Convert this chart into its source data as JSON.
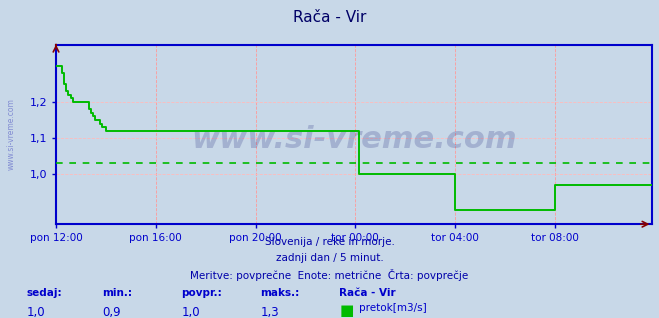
{
  "title": "Rača - Vir",
  "title_color": "#000066",
  "title_fontsize": 11,
  "bg_color": "#c8d8e8",
  "plot_bg_color": "#c8d8e8",
  "line_color": "#00bb00",
  "line_width": 1.4,
  "avg_line_color": "#00bb00",
  "avg_line_value": 1.03,
  "axis_color": "#0000cc",
  "grid_color_v": "#ff9999",
  "grid_color_h": "#ffbbbb",
  "ylim": [
    0.86,
    1.36
  ],
  "yticks": [
    1.0,
    1.1,
    1.2
  ],
  "xtick_labels": [
    "pon 12:00",
    "pon 16:00",
    "pon 20:00",
    "tor 00:00",
    "tor 04:00",
    "tor 08:00"
  ],
  "watermark_text": "www.si-vreme.com",
  "watermark_color": "#000066",
  "watermark_alpha": 0.18,
  "watermark_fontsize": 22,
  "footer_line1": "Slovenija / reke in morje.",
  "footer_line2": "zadnji dan / 5 minut.",
  "footer_line3": "Meritve: povprečne  Enote: metrične  Črta: povprečje",
  "footer_color": "#0000aa",
  "footer_fontsize": 7.5,
  "bottom_labels": {
    "sedaj_label": "sedaj:",
    "min_label": "min.:",
    "povpr_label": "povpr.:",
    "maks_label": "maks.:",
    "station_label": "Rača - Vir",
    "sedaj_val": "1,0",
    "min_val": "0,9",
    "povpr_val": "1,0",
    "maks_val": "1,3",
    "legend_label": "pretok[m3/s]"
  },
  "ylabel_text": "www.si-vreme.com",
  "ylabel_color": "#0000aa",
  "ylabel_alpha": 0.35,
  "n_points": 288,
  "xtick_pos": [
    0,
    48,
    96,
    144,
    192,
    240
  ],
  "data_x": [
    0,
    1,
    2,
    3,
    4,
    5,
    6,
    7,
    8,
    9,
    10,
    11,
    12,
    13,
    14,
    15,
    16,
    17,
    18,
    19,
    20,
    21,
    22,
    23,
    24,
    25,
    26,
    27,
    28,
    29,
    30,
    31,
    32,
    33,
    34,
    35,
    36,
    37,
    38,
    39,
    40,
    41,
    42,
    43,
    44,
    45,
    46,
    47,
    48,
    49,
    50,
    51,
    52,
    53,
    54,
    55,
    56,
    57,
    58,
    59,
    60,
    61,
    62,
    63,
    64,
    65,
    66,
    67,
    68,
    69,
    70,
    71,
    72,
    73,
    74,
    75,
    76,
    77,
    78,
    79,
    80,
    81,
    82,
    83,
    84,
    85,
    86,
    87,
    88,
    89,
    90,
    91,
    92,
    93,
    94,
    95,
    96,
    97,
    98,
    99,
    100,
    101,
    102,
    103,
    104,
    105,
    106,
    107,
    108,
    109,
    110,
    111,
    112,
    113,
    114,
    115,
    116,
    117,
    118,
    119,
    120,
    121,
    122,
    123,
    124,
    125,
    126,
    127,
    128,
    129,
    130,
    131,
    132,
    133,
    134,
    135,
    136,
    137,
    138,
    139,
    140,
    141,
    142,
    143,
    144,
    145,
    146,
    147,
    148,
    149,
    150,
    151,
    152,
    153,
    154,
    155,
    156,
    157,
    158,
    159,
    160,
    161,
    162,
    163,
    164,
    165,
    166,
    167,
    168,
    169,
    170,
    171,
    172,
    173,
    174,
    175,
    176,
    177,
    178,
    179,
    180,
    181,
    182,
    183,
    184,
    185,
    186,
    187,
    188,
    189,
    190,
    191,
    192,
    193,
    194,
    195,
    196,
    197,
    198,
    199,
    200,
    201,
    202,
    203,
    204,
    205,
    206,
    207,
    208,
    209,
    210,
    211,
    212,
    213,
    214,
    215,
    216,
    217,
    218,
    219,
    220,
    221,
    222,
    223,
    224,
    225,
    226,
    227,
    228,
    229,
    230,
    231,
    232,
    233,
    234,
    235,
    236,
    237,
    238,
    239,
    240,
    241,
    242,
    243,
    244,
    245,
    246,
    247,
    248,
    249,
    250,
    251,
    252,
    253,
    254,
    255,
    256,
    257,
    258,
    259,
    260,
    261,
    262,
    263,
    264,
    265,
    266,
    267,
    268,
    269,
    270,
    271,
    272,
    273,
    274,
    275,
    276,
    277,
    278,
    279,
    280,
    281,
    282,
    283,
    284,
    285,
    286,
    287
  ],
  "data_y": [
    1.3,
    1.3,
    1.3,
    1.28,
    1.25,
    1.23,
    1.22,
    1.21,
    1.2,
    1.2,
    1.2,
    1.2,
    1.2,
    1.2,
    1.2,
    1.2,
    1.18,
    1.17,
    1.16,
    1.15,
    1.15,
    1.14,
    1.13,
    1.13,
    1.12,
    1.12,
    1.12,
    1.12,
    1.12,
    1.12,
    1.12,
    1.12,
    1.12,
    1.12,
    1.12,
    1.12,
    1.12,
    1.12,
    1.12,
    1.12,
    1.12,
    1.12,
    1.12,
    1.12,
    1.12,
    1.12,
    1.12,
    1.12,
    1.12,
    1.12,
    1.12,
    1.12,
    1.12,
    1.12,
    1.12,
    1.12,
    1.12,
    1.12,
    1.12,
    1.12,
    1.12,
    1.12,
    1.12,
    1.12,
    1.12,
    1.12,
    1.12,
    1.12,
    1.12,
    1.12,
    1.12,
    1.12,
    1.12,
    1.12,
    1.12,
    1.12,
    1.12,
    1.12,
    1.12,
    1.12,
    1.12,
    1.12,
    1.12,
    1.12,
    1.12,
    1.12,
    1.12,
    1.12,
    1.12,
    1.12,
    1.12,
    1.12,
    1.12,
    1.12,
    1.12,
    1.12,
    1.12,
    1.12,
    1.12,
    1.12,
    1.12,
    1.12,
    1.12,
    1.12,
    1.12,
    1.12,
    1.12,
    1.12,
    1.12,
    1.12,
    1.12,
    1.12,
    1.12,
    1.12,
    1.12,
    1.12,
    1.12,
    1.12,
    1.12,
    1.12,
    1.12,
    1.12,
    1.12,
    1.12,
    1.12,
    1.12,
    1.12,
    1.12,
    1.12,
    1.12,
    1.12,
    1.12,
    1.12,
    1.12,
    1.12,
    1.12,
    1.12,
    1.12,
    1.12,
    1.12,
    1.12,
    1.12,
    1.12,
    1.12,
    1.12,
    1.12,
    1.0,
    1.0,
    1.0,
    1.0,
    1.0,
    1.0,
    1.0,
    1.0,
    1.0,
    1.0,
    1.0,
    1.0,
    1.0,
    1.0,
    1.0,
    1.0,
    1.0,
    1.0,
    1.0,
    1.0,
    1.0,
    1.0,
    1.0,
    1.0,
    1.0,
    1.0,
    1.0,
    1.0,
    1.0,
    1.0,
    1.0,
    1.0,
    1.0,
    1.0,
    1.0,
    1.0,
    1.0,
    1.0,
    1.0,
    1.0,
    1.0,
    1.0,
    1.0,
    1.0,
    1.0,
    1.0,
    0.9,
    0.9,
    0.9,
    0.9,
    0.9,
    0.9,
    0.9,
    0.9,
    0.9,
    0.9,
    0.9,
    0.9,
    0.9,
    0.9,
    0.9,
    0.9,
    0.9,
    0.9,
    0.9,
    0.9,
    0.9,
    0.9,
    0.9,
    0.9,
    0.9,
    0.9,
    0.9,
    0.9,
    0.9,
    0.9,
    0.9,
    0.9,
    0.9,
    0.9,
    0.9,
    0.9,
    0.9,
    0.9,
    0.9,
    0.9,
    0.9,
    0.9,
    0.9,
    0.9,
    0.9,
    0.9,
    0.9,
    0.9,
    0.97,
    0.97,
    0.97,
    0.97,
    0.97,
    0.97,
    0.97,
    0.97,
    0.97,
    0.97,
    0.97,
    0.97,
    0.97,
    0.97,
    0.97,
    0.97,
    0.97,
    0.97,
    0.97,
    0.97,
    0.97,
    0.97,
    0.97,
    0.97,
    0.97,
    0.97,
    0.97,
    0.97,
    0.97,
    0.97,
    0.97,
    0.97,
    0.97,
    0.97,
    0.97,
    0.97,
    0.97,
    0.97,
    0.97,
    0.97,
    0.97,
    0.97,
    0.97,
    0.97,
    0.97,
    0.97,
    0.97,
    0.97
  ]
}
